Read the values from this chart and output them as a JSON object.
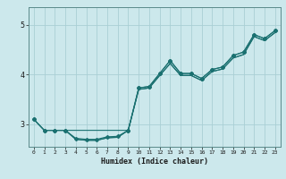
{
  "xlabel": "Humidex (Indice chaleur)",
  "bg_color": "#cce8ec",
  "grid_color": "#aacfd5",
  "line_color": "#1a7070",
  "xlim": [
    -0.5,
    23.5
  ],
  "ylim": [
    2.55,
    5.35
  ],
  "yticks": [
    3,
    4,
    5
  ],
  "xtick_labels": [
    "0",
    "1",
    "2",
    "3",
    "4",
    "5",
    "6",
    "7",
    "8",
    "9",
    "10",
    "11",
    "12",
    "13",
    "14",
    "15",
    "16",
    "17",
    "18",
    "19",
    "20",
    "21",
    "22",
    "23"
  ],
  "s1_x": [
    0,
    1,
    2,
    3,
    4,
    5,
    6,
    7,
    8,
    9,
    10,
    11,
    12,
    13,
    14,
    15,
    16,
    17,
    18,
    19,
    20,
    21,
    22,
    23
  ],
  "s1_y": [
    3.1,
    2.88,
    2.88,
    2.88,
    2.72,
    2.7,
    2.7,
    2.75,
    2.76,
    2.88,
    3.73,
    3.76,
    4.02,
    4.28,
    4.02,
    4.02,
    3.92,
    4.1,
    4.15,
    4.38,
    4.45,
    4.8,
    4.72,
    4.88
  ],
  "s2_x": [
    0,
    1,
    2,
    3,
    4,
    5,
    6,
    7,
    8,
    9,
    10,
    11,
    12,
    13,
    14,
    15,
    16,
    17,
    18,
    19,
    20,
    21,
    22,
    23
  ],
  "s2_y": [
    3.1,
    2.88,
    2.88,
    2.88,
    2.7,
    2.68,
    2.68,
    2.73,
    2.74,
    2.88,
    3.7,
    3.73,
    3.98,
    4.22,
    3.98,
    3.98,
    3.88,
    4.06,
    4.11,
    4.33,
    4.4,
    4.76,
    4.68,
    4.84
  ],
  "s3_x": [
    3,
    4,
    5,
    6,
    7,
    8,
    9,
    10,
    11,
    12,
    13,
    14,
    15,
    16,
    17,
    18,
    19,
    20,
    21,
    22,
    23
  ],
  "s3_y": [
    2.88,
    2.7,
    2.68,
    2.68,
    2.73,
    2.74,
    2.88,
    3.7,
    3.73,
    3.98,
    4.22,
    3.98,
    3.98,
    3.88,
    4.06,
    4.11,
    4.33,
    4.4,
    4.76,
    4.68,
    4.84
  ],
  "s4_x": [
    0,
    1,
    2,
    3,
    9,
    10,
    11,
    12,
    13,
    14,
    15,
    16,
    17,
    18,
    19,
    20,
    21,
    22,
    23
  ],
  "s4_y": [
    3.1,
    2.88,
    2.88,
    2.88,
    2.88,
    3.73,
    3.76,
    4.02,
    4.28,
    4.02,
    4.02,
    3.92,
    4.1,
    4.15,
    4.38,
    4.45,
    4.8,
    4.72,
    4.88
  ]
}
